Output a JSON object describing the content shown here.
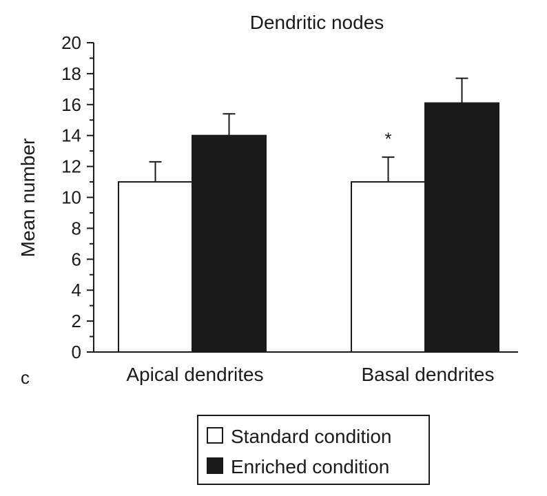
{
  "chart_data": {
    "type": "bar",
    "title": "Dendritic nodes",
    "ylabel": "Mean number",
    "xlabel": "",
    "ylim": [
      0,
      20
    ],
    "yticks": [
      0,
      2,
      4,
      6,
      8,
      10,
      12,
      14,
      16,
      18,
      20
    ],
    "categories": [
      "Apical dendrites",
      "Basal dendrites"
    ],
    "series": [
      {
        "name": "Standard condition",
        "color": "#ffffff",
        "values": [
          11,
          11
        ],
        "errors": [
          1.3,
          1.6
        ]
      },
      {
        "name": "Enriched condition",
        "color": "#1a1a1a",
        "values": [
          14,
          16.1
        ],
        "errors": [
          1.4,
          1.6
        ]
      }
    ],
    "annotations": [
      {
        "text": "*",
        "category": "Basal dendrites",
        "series": "Standard condition",
        "y": 14.1
      }
    ],
    "panel_label": "c",
    "legend_position": "bottom-center"
  }
}
